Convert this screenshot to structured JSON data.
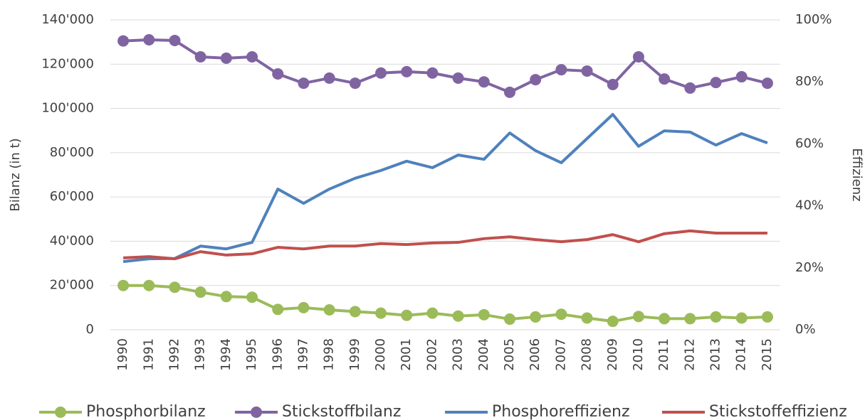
{
  "chart_data": {
    "type": "line",
    "categories": [
      "1990",
      "1991",
      "1992",
      "1993",
      "1994",
      "1995",
      "1996",
      "1997",
      "1998",
      "1999",
      "2000",
      "2001",
      "2002",
      "2003",
      "2004",
      "2005",
      "2006",
      "2007",
      "2008",
      "2009",
      "2010",
      "2011",
      "2012",
      "2013",
      "2014",
      "2015"
    ],
    "ylabel": "Bilanz (in t)",
    "y2label": "Effizienz",
    "ylim": [
      0,
      140000
    ],
    "yticks": [
      0,
      {
        "value": 20000,
        "label": "20'000"
      },
      {
        "value": 40000,
        "label": "40'000"
      },
      {
        "value": 60000,
        "label": "60'000"
      },
      {
        "value": 80000,
        "label": "80'000"
      },
      {
        "value": 100000,
        "label": "100'000"
      },
      {
        "value": 120000,
        "label": "120'000"
      },
      {
        "value": 140000,
        "label": "140'000"
      }
    ],
    "y2lim": [
      0,
      100
    ],
    "y2ticks": [
      {
        "value": 0,
        "label": "0%"
      },
      {
        "value": 20,
        "label": "20%"
      },
      {
        "value": 40,
        "label": "40%"
      },
      {
        "value": 60,
        "label": "60%"
      },
      {
        "value": 80,
        "label": "80%"
      },
      {
        "value": 100,
        "label": "100%"
      }
    ],
    "grid": true,
    "legend": "bottom",
    "series": [
      {
        "name": "Phosphorbilanz",
        "color": "#9bbb59",
        "marker": true,
        "values": [
          20000,
          20000,
          19200,
          17000,
          15000,
          14700,
          9200,
          10000,
          9000,
          8200,
          7500,
          6500,
          7500,
          6200,
          6800,
          4800,
          5800,
          7000,
          5300,
          3800,
          6000,
          5000,
          5000,
          5800,
          5300,
          5800
        ]
      },
      {
        "name": "Stickstoffbilanz",
        "color": "#8064a2",
        "marker": true,
        "values": [
          130500,
          131000,
          130700,
          123300,
          122700,
          123300,
          115600,
          111400,
          113700,
          111400,
          116000,
          116600,
          116000,
          113700,
          112000,
          107300,
          113000,
          117500,
          116900,
          110800,
          123300,
          113300,
          109200,
          111700,
          114300,
          111400
        ]
      },
      {
        "name": "Phosphoreffizienz",
        "color": "#4f81bd",
        "marker": false,
        "axis": "y2",
        "values": [
          22.0,
          22.9,
          23.0,
          27.0,
          26.1,
          28.2,
          45.4,
          40.8,
          45.4,
          48.9,
          51.4,
          54.4,
          52.3,
          56.4,
          55.0,
          63.5,
          57.8,
          53.9,
          61.7,
          69.5,
          59.2,
          64.2,
          63.8,
          59.6,
          63.3,
          60.3
        ]
      },
      {
        "name": "Stickstoffeffizienz",
        "color": "#c0504d",
        "marker": false,
        "axis": "y2",
        "values": [
          23.2,
          23.6,
          22.9,
          25.2,
          24.1,
          24.5,
          26.6,
          26.1,
          27.0,
          27.0,
          27.8,
          27.5,
          28.0,
          28.2,
          29.4,
          30.0,
          29.1,
          28.4,
          29.1,
          30.7,
          28.4,
          31.0,
          31.9,
          31.2,
          31.2,
          31.2
        ]
      }
    ]
  }
}
